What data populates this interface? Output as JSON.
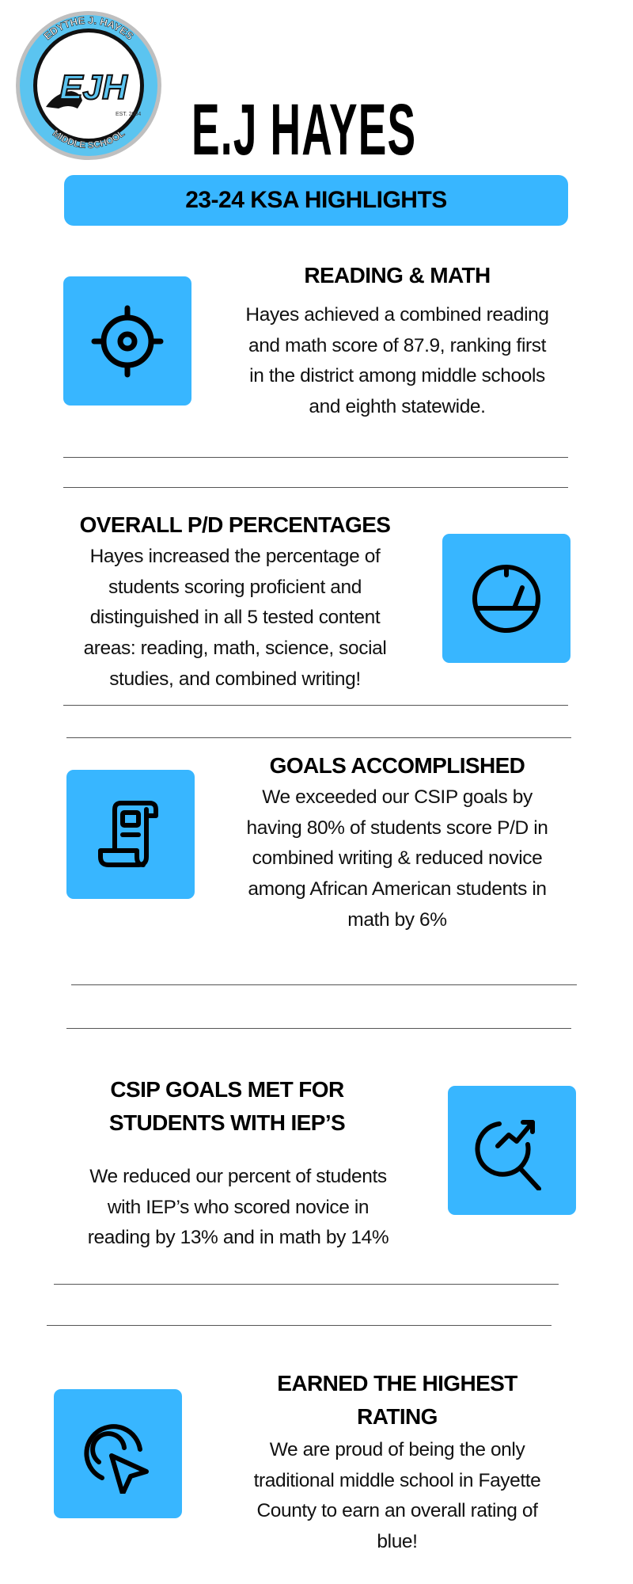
{
  "header": {
    "logo_text_top": "EDYTHE J. HAYES",
    "logo_initials": "EJH",
    "logo_est": "EST. 2004",
    "logo_text_bottom": "MIDDLE SCHOOL",
    "title": "E.J HAYES",
    "banner": "23-24 KSA HIGHLIGHTS"
  },
  "colors": {
    "accent": "#38b6ff",
    "text": "#000000"
  },
  "sections": [
    {
      "icon": "target-icon",
      "heading": [
        "READING & MATH"
      ],
      "lines": [
        "Hayes achieved a combined reading",
        "and math score of 87.9, ranking first",
        "in the district among middle schools",
        "and eighth statewide."
      ]
    },
    {
      "icon": "gauge-icon",
      "heading": [
        "OVERALL P/D PERCENTAGES"
      ],
      "lines": [
        "Hayes increased the percentage of",
        "students scoring proficient and",
        "distinguished in all 5 tested content",
        "areas: reading, math, science, social",
        "studies, and combined writing!"
      ]
    },
    {
      "icon": "document-scroll-icon",
      "heading": [
        "GOALS ACCOMPLISHED"
      ],
      "lines": [
        "We exceeded our CSIP goals by",
        "having 80% of students score P/D in",
        "combined writing & reduced novice",
        "among African American students in",
        "math by 6%"
      ]
    },
    {
      "icon": "search-trend-icon",
      "heading": [
        "CSIP GOALS MET FOR",
        "STUDENTS WITH IEP’S"
      ],
      "lines": [
        "We reduced our percent of students",
        "with IEP’s who scored novice in",
        "reading by 13% and in math by 14%"
      ]
    },
    {
      "icon": "cursor-click-icon",
      "heading": [
        "EARNED THE HIGHEST",
        "RATING"
      ],
      "lines": [
        "We are proud of being the only",
        "traditional middle school in Fayette",
        "County to earn an overall rating of",
        "blue!"
      ]
    }
  ]
}
